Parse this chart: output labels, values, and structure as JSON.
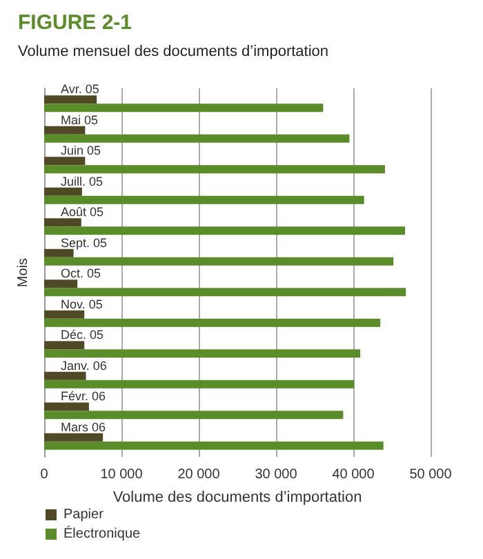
{
  "chart_data": {
    "type": "bar",
    "orientation": "horizontal",
    "title": "FIGURE 2-1",
    "subtitle": "Volume mensuel des documents d’importation",
    "xlabel": "Volume des documents d’importation",
    "ylabel": "Mois",
    "categories": [
      "Avr. 05",
      "Mai 05",
      "Juin 05",
      "Juill. 05",
      "Août 05",
      "Sept. 05",
      "Oct. 05",
      "Nov. 05",
      "Déc. 05",
      "Janv. 06",
      "Févr. 06",
      "Mars 06"
    ],
    "series": [
      {
        "name": "Papier",
        "color": "#4f4a25",
        "values": [
          6800,
          5300,
          5300,
          4900,
          4800,
          3800,
          4300,
          5200,
          5200,
          5400,
          5800,
          7600
        ]
      },
      {
        "name": "Électronique",
        "color": "#5b8c2a",
        "values": [
          36100,
          39500,
          44100,
          41400,
          46700,
          45200,
          46800,
          43500,
          40900,
          40100,
          38700,
          43900
        ]
      }
    ],
    "xlim": [
      0,
      50000
    ],
    "xticks": [
      {
        "value": 0,
        "label": "0"
      },
      {
        "value": 10000,
        "label": "10 000"
      },
      {
        "value": 20000,
        "label": "20 000"
      },
      {
        "value": 30000,
        "label": "30 000"
      },
      {
        "value": 40000,
        "label": "40 000"
      },
      {
        "value": 50000,
        "label": "50 000"
      }
    ],
    "grid": "x",
    "legend": "bottom left"
  }
}
